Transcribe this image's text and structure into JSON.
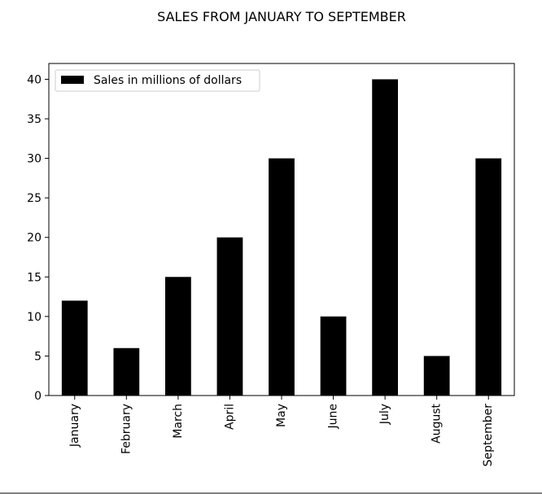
{
  "chart_data": {
    "type": "bar",
    "title": "SALES FROM JANUARY TO SEPTEMBER",
    "categories": [
      "January",
      "February",
      "March",
      "April",
      "May",
      "June",
      "July",
      "August",
      "September"
    ],
    "series": [
      {
        "name": "Sales in millions of dollars",
        "values": [
          12,
          6,
          15,
          20,
          30,
          10,
          40,
          5,
          30
        ],
        "color": "#000000"
      }
    ],
    "xlabel": "",
    "ylabel": "",
    "ylim": [
      0,
      42
    ],
    "yticks": [
      0,
      5,
      10,
      15,
      20,
      25,
      30,
      35,
      40
    ],
    "grid": false,
    "legend_position": "top-left"
  }
}
